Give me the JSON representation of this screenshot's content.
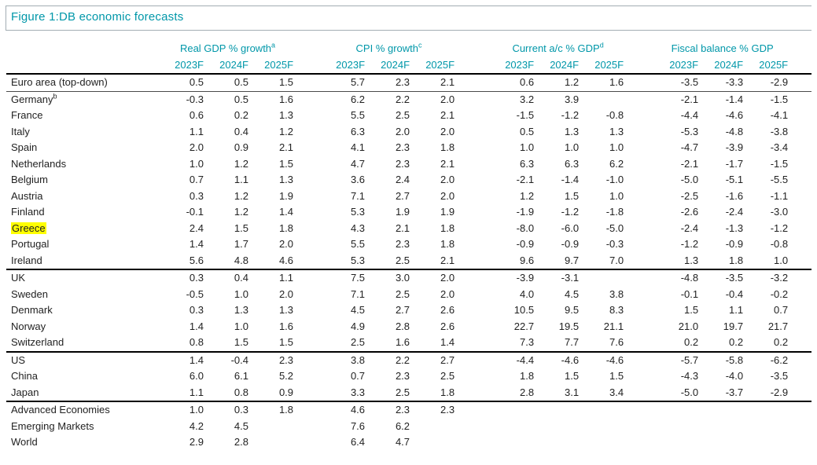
{
  "theme": {
    "accent_color": "#0097a9",
    "highlight_color": "#ffff00",
    "rule_color": "#a3adb3",
    "heavy_rule_color": "#000000"
  },
  "chart_data": {
    "type": "table",
    "title": "Figure 1:DB economic forecasts",
    "column_groups": [
      {
        "label": "Real GDP % growth",
        "sup": "a"
      },
      {
        "label": "CPI % growth",
        "sup": "c"
      },
      {
        "label": "Current a/c % GDP",
        "sup": "d"
      },
      {
        "label": "Fiscal balance % GDP",
        "sup": ""
      }
    ],
    "year_headers": [
      "2023F",
      "2024F",
      "2025F"
    ],
    "rows": [
      {
        "name": "Euro area (top-down)",
        "sup": "",
        "highlight": false,
        "rule": "thin",
        "values": [
          "0.5",
          "0.5",
          "1.5",
          "5.7",
          "2.3",
          "2.1",
          "0.6",
          "1.2",
          "1.6",
          "-3.5",
          "-3.3",
          "-2.9"
        ]
      },
      {
        "name": "Germany",
        "sup": "b",
        "highlight": false,
        "values": [
          "-0.3",
          "0.5",
          "1.6",
          "6.2",
          "2.2",
          "2.0",
          "3.2",
          "3.9",
          "",
          "-2.1",
          "-1.4",
          "-1.5"
        ]
      },
      {
        "name": "France",
        "sup": "",
        "highlight": false,
        "values": [
          "0.6",
          "0.2",
          "1.3",
          "5.5",
          "2.5",
          "2.1",
          "-1.5",
          "-1.2",
          "-0.8",
          "-4.4",
          "-4.6",
          "-4.1"
        ]
      },
      {
        "name": "Italy",
        "sup": "",
        "highlight": false,
        "values": [
          "1.1",
          "0.4",
          "1.2",
          "6.3",
          "2.0",
          "2.0",
          "0.5",
          "1.3",
          "1.3",
          "-5.3",
          "-4.8",
          "-3.8"
        ]
      },
      {
        "name": "Spain",
        "sup": "",
        "highlight": false,
        "values": [
          "2.0",
          "0.9",
          "2.1",
          "4.1",
          "2.3",
          "1.8",
          "1.0",
          "1.0",
          "1.0",
          "-4.7",
          "-3.9",
          "-3.4"
        ]
      },
      {
        "name": "Netherlands",
        "sup": "",
        "highlight": false,
        "values": [
          "1.0",
          "1.2",
          "1.5",
          "4.7",
          "2.3",
          "2.1",
          "6.3",
          "6.3",
          "6.2",
          "-2.1",
          "-1.7",
          "-1.5"
        ]
      },
      {
        "name": "Belgium",
        "sup": "",
        "highlight": false,
        "values": [
          "0.7",
          "1.1",
          "1.3",
          "3.6",
          "2.4",
          "2.0",
          "-2.1",
          "-1.4",
          "-1.0",
          "-5.0",
          "-5.1",
          "-5.5"
        ]
      },
      {
        "name": "Austria",
        "sup": "",
        "highlight": false,
        "values": [
          "0.3",
          "1.2",
          "1.9",
          "7.1",
          "2.7",
          "2.0",
          "1.2",
          "1.5",
          "1.0",
          "-2.5",
          "-1.6",
          "-1.1"
        ]
      },
      {
        "name": "Finland",
        "sup": "",
        "highlight": false,
        "values": [
          "-0.1",
          "1.2",
          "1.4",
          "5.3",
          "1.9",
          "1.9",
          "-1.9",
          "-1.2",
          "-1.8",
          "-2.6",
          "-2.4",
          "-3.0"
        ]
      },
      {
        "name": "Greece",
        "sup": "",
        "highlight": true,
        "values": [
          "2.4",
          "1.5",
          "1.8",
          "4.3",
          "2.1",
          "1.8",
          "-8.0",
          "-6.0",
          "-5.0",
          "-2.4",
          "-1.3",
          "-1.2"
        ]
      },
      {
        "name": "Portugal",
        "sup": "",
        "highlight": false,
        "values": [
          "1.4",
          "1.7",
          "2.0",
          "5.5",
          "2.3",
          "1.8",
          "-0.9",
          "-0.9",
          "-0.3",
          "-1.2",
          "-0.9",
          "-0.8"
        ]
      },
      {
        "name": "Ireland",
        "sup": "",
        "highlight": false,
        "rule": "thick",
        "values": [
          "5.6",
          "4.8",
          "4.6",
          "5.3",
          "2.5",
          "2.1",
          "9.6",
          "9.7",
          "7.0",
          "1.3",
          "1.8",
          "1.0"
        ]
      },
      {
        "name": "UK",
        "sup": "",
        "highlight": false,
        "values": [
          "0.3",
          "0.4",
          "1.1",
          "7.5",
          "3.0",
          "2.0",
          "-3.9",
          "-3.1",
          "",
          "-4.8",
          "-3.5",
          "-3.2"
        ]
      },
      {
        "name": "Sweden",
        "sup": "",
        "highlight": false,
        "values": [
          "-0.5",
          "1.0",
          "2.0",
          "7.1",
          "2.5",
          "2.0",
          "4.0",
          "4.5",
          "3.8",
          "-0.1",
          "-0.4",
          "-0.2"
        ]
      },
      {
        "name": "Denmark",
        "sup": "",
        "highlight": false,
        "values": [
          "0.3",
          "1.3",
          "1.3",
          "4.5",
          "2.7",
          "2.6",
          "10.5",
          "9.5",
          "8.3",
          "1.5",
          "1.1",
          "0.7"
        ]
      },
      {
        "name": "Norway",
        "sup": "",
        "highlight": false,
        "values": [
          "1.4",
          "1.0",
          "1.6",
          "4.9",
          "2.8",
          "2.6",
          "22.7",
          "19.5",
          "21.1",
          "21.0",
          "19.7",
          "21.7"
        ]
      },
      {
        "name": "Switzerland",
        "sup": "",
        "highlight": false,
        "rule": "thick",
        "values": [
          "0.8",
          "1.5",
          "1.5",
          "2.5",
          "1.6",
          "1.4",
          "7.3",
          "7.7",
          "7.6",
          "0.2",
          "0.2",
          "0.2"
        ]
      },
      {
        "name": "US",
        "sup": "",
        "highlight": false,
        "values": [
          "1.4",
          "-0.4",
          "2.3",
          "3.8",
          "2.2",
          "2.7",
          "-4.4",
          "-4.6",
          "-4.6",
          "-5.7",
          "-5.8",
          "-6.2"
        ]
      },
      {
        "name": "China",
        "sup": "",
        "highlight": false,
        "values": [
          "6.0",
          "6.1",
          "5.2",
          "0.7",
          "2.3",
          "2.5",
          "1.8",
          "1.5",
          "1.5",
          "-4.3",
          "-4.0",
          "-3.5"
        ]
      },
      {
        "name": "Japan",
        "sup": "",
        "highlight": false,
        "rule": "thick",
        "values": [
          "1.1",
          "0.8",
          "0.9",
          "3.3",
          "2.5",
          "1.8",
          "2.8",
          "3.1",
          "3.4",
          "-5.0",
          "-3.7",
          "-2.9"
        ]
      },
      {
        "name": "Advanced Economies",
        "sup": "",
        "highlight": false,
        "values": [
          "1.0",
          "0.3",
          "1.8",
          "4.6",
          "2.3",
          "2.3",
          "",
          "",
          "",
          "",
          "",
          ""
        ]
      },
      {
        "name": "Emerging Markets",
        "sup": "",
        "highlight": false,
        "values": [
          "4.2",
          "4.5",
          "",
          "7.6",
          "6.2",
          "",
          "",
          "",
          "",
          "",
          "",
          ""
        ]
      },
      {
        "name": "World",
        "sup": "",
        "highlight": false,
        "values": [
          "2.9",
          "2.8",
          "",
          "6.4",
          "4.7",
          "",
          "",
          "",
          "",
          "",
          "",
          ""
        ]
      }
    ]
  }
}
